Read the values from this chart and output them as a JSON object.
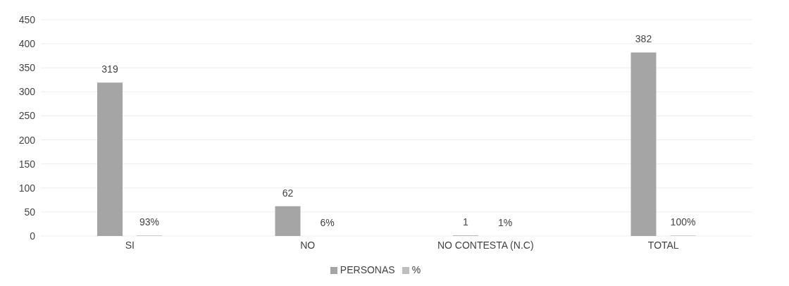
{
  "chart_data": {
    "type": "bar",
    "categories": [
      "SI",
      "NO",
      "NO CONTESTA (N.C)",
      "TOTAL"
    ],
    "series": [
      {
        "name": "PERSONAS",
        "color": "#a5a5a5",
        "values": [
          319,
          62,
          1,
          382
        ],
        "value_labels": [
          "319",
          "62",
          "1",
          "382"
        ]
      },
      {
        "name": "%",
        "color": "#bfbfbf",
        "values": [
          0.93,
          0.06,
          0.01,
          1
        ],
        "value_labels": [
          "93%",
          "6%",
          "1%",
          "100%"
        ]
      }
    ],
    "ylim": [
      0,
      450
    ],
    "yticks": [
      0,
      50,
      100,
      150,
      200,
      250,
      300,
      350,
      400,
      450
    ],
    "grid": "y",
    "legend": "bottom"
  }
}
